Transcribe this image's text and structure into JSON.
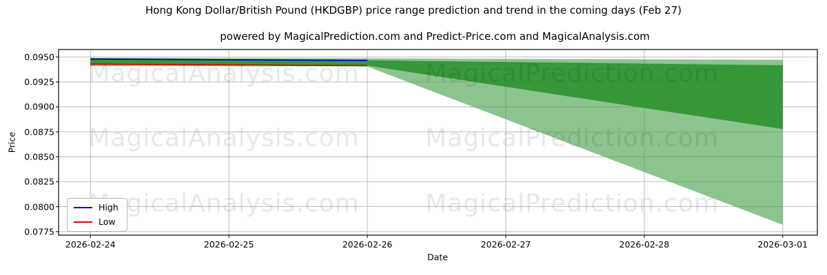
{
  "page": {
    "background": "#ffffff"
  },
  "chart_data": {
    "type": "area",
    "title": "Hong Kong Dollar/British Pound (HKDGBP) price range prediction and trend in the coming days (Feb 27)",
    "subtitle": "powered by MagicalPrediction.com and Predict-Price.com and MagicalAnalysis.com",
    "xlabel": "Date",
    "ylabel": "Price",
    "categories": [
      "2026-02-24",
      "2026-02-25",
      "2026-02-26",
      "2026-02-27",
      "2026-02-28",
      "2026-03-01"
    ],
    "y_tick_labels": [
      "0.0950",
      "0.0925",
      "0.0900",
      "0.0875",
      "0.0850",
      "0.0825",
      "0.0800",
      "0.0775"
    ],
    "ylim": [
      0.07715,
      0.09575
    ],
    "xlim_index": [
      -0.23,
      5.25
    ],
    "grid": true,
    "gridline_color": "#b3b3b3",
    "legend_position": "lower left",
    "series": [
      {
        "name": "High",
        "color": "#0000cc",
        "x": [
          0,
          1,
          2
        ],
        "values": [
          0.09479,
          0.09472,
          0.09466
        ]
      },
      {
        "name": "Low",
        "color": "#dd0000",
        "x": [
          0,
          1,
          2
        ],
        "values": [
          0.09428,
          0.09421,
          0.09414
        ]
      }
    ],
    "bands": [
      {
        "name": "prediction-range-wide",
        "color": "rgba(70,160,74,0.62)",
        "x": [
          0,
          2,
          5
        ],
        "upper": [
          0.09493,
          0.09486,
          0.09472
        ],
        "lower": [
          0.0941,
          0.09404,
          0.07818
        ]
      },
      {
        "name": "prediction-range-core",
        "color": "rgba(47,148,50,0.92)",
        "x": [
          0,
          2,
          5
        ],
        "upper": [
          0.09479,
          0.09466,
          0.09417
        ],
        "lower": [
          0.09424,
          0.09414,
          0.08777
        ]
      }
    ]
  },
  "watermarks": {
    "left": "MagicalAnalysis.com",
    "right": "MagicalPrediction.com"
  }
}
